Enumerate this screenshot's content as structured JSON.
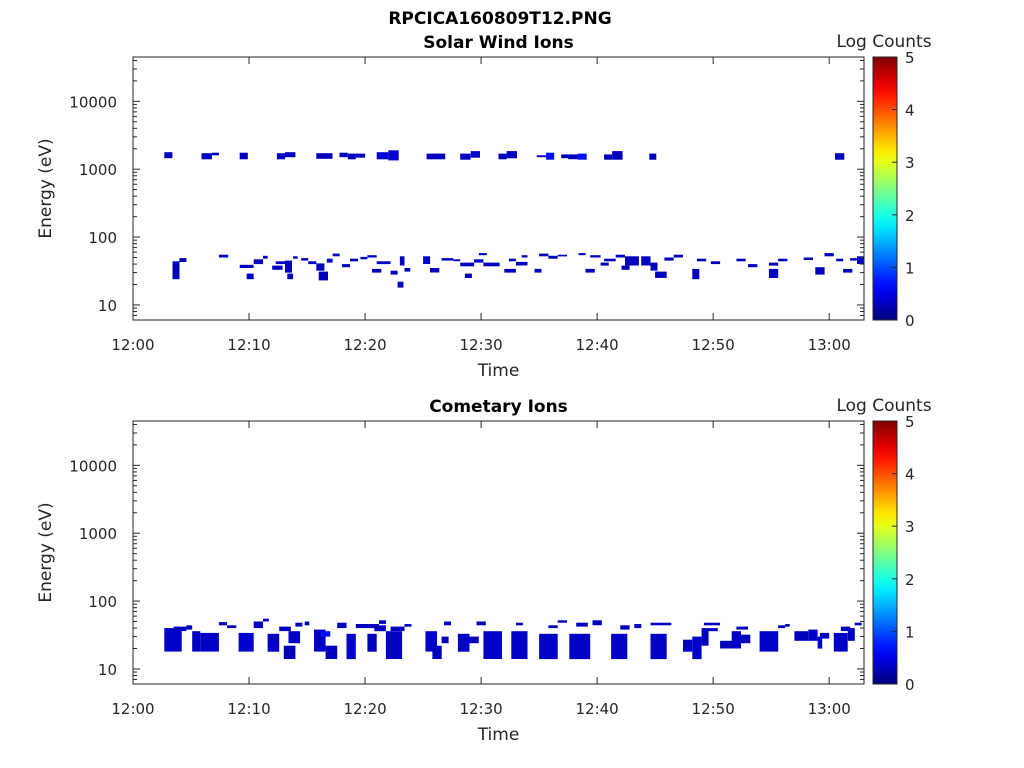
{
  "figure_title": "RPCICA160809T12.PNG",
  "chart_data": [
    {
      "type": "heatmap",
      "title": "Solar Wind Ions",
      "xlabel": "Time",
      "ylabel": "Energy (eV)",
      "x_ticks": [
        "12:00",
        "12:10",
        "12:20",
        "12:30",
        "12:40",
        "12:50",
        "13:00"
      ],
      "x_tick_minutes": [
        0,
        10,
        20,
        30,
        40,
        50,
        60
      ],
      "xlim_minutes": [
        0,
        63
      ],
      "y_scale": "log",
      "ylim": [
        6,
        45000
      ],
      "y_ticks": [
        10,
        100,
        1000,
        10000
      ],
      "y_tick_labels": [
        "10",
        "100",
        "1000",
        "10000"
      ],
      "colorbar": {
        "label": "Log Counts",
        "range": [
          0,
          5
        ],
        "ticks": [
          "0",
          "1",
          "2",
          "3",
          "4",
          "5"
        ]
      },
      "cells_format": [
        "t_start_min",
        "t_end_min",
        "e_low_eV",
        "e_high_eV",
        "log_counts"
      ],
      "cells": [
        [
          2.7,
          3.4,
          1450,
          1780,
          0.3
        ],
        [
          5.9,
          6.8,
          1400,
          1720,
          0.3
        ],
        [
          6.8,
          7.4,
          1600,
          1750,
          0.3
        ],
        [
          9.2,
          9.9,
          1400,
          1750,
          0.3
        ],
        [
          12.4,
          13.1,
          1400,
          1720,
          0.3
        ],
        [
          13.1,
          14.0,
          1500,
          1780,
          0.3
        ],
        [
          15.8,
          17.2,
          1420,
          1720,
          0.3
        ],
        [
          17.8,
          18.5,
          1500,
          1750,
          0.3
        ],
        [
          18.5,
          19.2,
          1400,
          1700,
          0.3
        ],
        [
          19.2,
          20.0,
          1480,
          1700,
          0.3
        ],
        [
          21.0,
          22.0,
          1400,
          1780,
          0.4
        ],
        [
          22.0,
          22.9,
          1350,
          1900,
          0.4
        ],
        [
          25.3,
          26.9,
          1400,
          1700,
          0.3
        ],
        [
          28.2,
          29.1,
          1380,
          1700,
          0.3
        ],
        [
          29.1,
          29.9,
          1480,
          1850,
          0.4
        ],
        [
          31.5,
          32.2,
          1400,
          1700,
          0.3
        ],
        [
          32.2,
          33.1,
          1450,
          1850,
          0.3
        ],
        [
          34.8,
          35.6,
          1500,
          1600,
          0.3
        ],
        [
          35.6,
          36.3,
          1380,
          1750,
          0.7
        ],
        [
          36.9,
          37.5,
          1450,
          1650,
          0.3
        ],
        [
          37.5,
          38.3,
          1400,
          1650,
          0.3
        ],
        [
          38.3,
          39.1,
          1380,
          1700,
          0.7
        ],
        [
          40.6,
          41.3,
          1380,
          1650,
          0.3
        ],
        [
          41.3,
          42.2,
          1380,
          1850,
          0.3
        ],
        [
          44.5,
          45.1,
          1380,
          1700,
          0.3
        ],
        [
          60.5,
          61.3,
          1380,
          1720,
          0.3
        ],
        [
          3.4,
          4.0,
          24,
          44,
          0.3
        ],
        [
          4.0,
          4.6,
          43,
          49,
          0.3
        ],
        [
          7.4,
          8.2,
          50,
          55,
          0.3
        ],
        [
          9.2,
          10.4,
          35,
          39,
          0.3
        ],
        [
          9.8,
          10.4,
          24,
          29,
          0.3
        ],
        [
          10.4,
          11.2,
          40,
          47,
          0.3
        ],
        [
          11.2,
          11.6,
          48,
          53,
          0.3
        ],
        [
          12.0,
          12.9,
          33,
          38,
          0.3
        ],
        [
          12.3,
          13.1,
          40,
          44,
          0.3
        ],
        [
          13.1,
          13.7,
          30,
          45,
          0.3
        ],
        [
          13.3,
          13.8,
          24,
          29,
          0.3
        ],
        [
          13.8,
          14.2,
          48,
          52,
          0.3
        ],
        [
          14.5,
          15.1,
          45,
          49,
          0.3
        ],
        [
          15.1,
          15.8,
          40,
          44,
          0.3
        ],
        [
          15.8,
          16.5,
          32,
          41,
          0.3
        ],
        [
          16.0,
          16.8,
          23,
          31,
          0.3
        ],
        [
          16.7,
          17.2,
          42,
          48,
          0.3
        ],
        [
          17.2,
          17.8,
          52,
          57,
          0.3
        ],
        [
          18.0,
          18.7,
          36,
          40,
          0.3
        ],
        [
          18.7,
          19.4,
          44,
          48,
          0.3
        ],
        [
          19.6,
          20.2,
          47,
          51,
          0.3
        ],
        [
          20.2,
          21.0,
          50,
          54,
          0.3
        ],
        [
          20.6,
          21.4,
          30,
          34,
          0.3
        ],
        [
          21.0,
          22.2,
          40,
          44,
          0.3
        ],
        [
          22.2,
          22.8,
          28,
          32,
          0.3
        ],
        [
          22.8,
          23.3,
          18,
          22,
          0.3
        ],
        [
          23.0,
          23.4,
          38,
          52,
          0.3
        ],
        [
          23.4,
          23.9,
          31,
          35,
          0.3
        ],
        [
          25.0,
          25.6,
          40,
          52,
          0.3
        ],
        [
          25.6,
          26.4,
          30,
          35,
          0.3
        ],
        [
          26.6,
          27.6,
          45,
          49,
          0.3
        ],
        [
          27.6,
          28.2,
          44,
          47,
          0.3
        ],
        [
          28.2,
          29.4,
          37,
          42,
          0.3
        ],
        [
          28.6,
          29.2,
          25,
          29,
          0.3
        ],
        [
          29.4,
          30.2,
          42,
          47,
          0.3
        ],
        [
          29.8,
          30.5,
          54,
          58,
          0.3
        ],
        [
          30.2,
          31.6,
          37,
          42,
          0.3
        ],
        [
          32.0,
          33.0,
          30,
          34,
          0.3
        ],
        [
          32.4,
          33.0,
          44,
          48,
          0.3
        ],
        [
          33.0,
          34.0,
          38,
          43,
          0.3
        ],
        [
          33.5,
          34.0,
          50,
          54,
          0.3
        ],
        [
          34.6,
          35.2,
          30,
          34,
          0.3
        ],
        [
          35.0,
          35.8,
          52,
          57,
          0.3
        ],
        [
          35.8,
          36.6,
          48,
          53,
          0.3
        ],
        [
          36.6,
          37.4,
          52,
          55,
          0.3
        ],
        [
          38.4,
          39.0,
          54,
          58,
          0.3
        ],
        [
          39.0,
          39.8,
          30,
          34,
          0.3
        ],
        [
          39.4,
          40.3,
          50,
          54,
          0.3
        ],
        [
          40.3,
          41.0,
          38,
          42,
          0.3
        ],
        [
          40.6,
          41.6,
          44,
          48,
          0.3
        ],
        [
          41.6,
          42.4,
          50,
          55,
          0.3
        ],
        [
          42.1,
          42.8,
          33,
          38,
          0.3
        ],
        [
          42.4,
          43.6,
          38,
          52,
          0.3
        ],
        [
          43.8,
          44.6,
          38,
          52,
          0.3
        ],
        [
          44.6,
          45.2,
          32,
          42,
          0.3
        ],
        [
          45.0,
          46.0,
          25,
          31,
          0.3
        ],
        [
          45.8,
          46.6,
          45,
          50,
          0.3
        ],
        [
          46.6,
          47.4,
          50,
          55,
          0.3
        ],
        [
          48.6,
          49.4,
          44,
          48,
          0.3
        ],
        [
          48.2,
          48.8,
          24,
          34,
          0.3
        ],
        [
          49.8,
          50.6,
          40,
          44,
          0.3
        ],
        [
          52.0,
          52.8,
          44,
          48,
          0.3
        ],
        [
          53.0,
          53.8,
          36,
          40,
          0.3
        ],
        [
          54.8,
          55.6,
          25,
          34,
          0.3
        ],
        [
          54.8,
          55.6,
          38,
          42,
          0.3
        ],
        [
          55.6,
          56.4,
          44,
          48,
          0.3
        ],
        [
          57.8,
          58.6,
          46,
          50,
          0.3
        ],
        [
          58.8,
          59.6,
          28,
          36,
          0.3
        ],
        [
          59.6,
          60.4,
          52,
          58,
          0.3
        ],
        [
          60.6,
          61.2,
          44,
          48,
          0.3
        ],
        [
          61.2,
          62.0,
          30,
          34,
          0.3
        ],
        [
          61.8,
          62.6,
          45,
          49,
          0.3
        ],
        [
          62.4,
          63.0,
          40,
          52,
          0.3
        ]
      ]
    },
    {
      "type": "heatmap",
      "title": "Cometary Ions",
      "xlabel": "Time",
      "ylabel": "Energy (eV)",
      "x_ticks": [
        "12:00",
        "12:10",
        "12:20",
        "12:30",
        "12:40",
        "12:50",
        "13:00"
      ],
      "x_tick_minutes": [
        0,
        10,
        20,
        30,
        40,
        50,
        60
      ],
      "xlim_minutes": [
        0,
        63
      ],
      "y_scale": "log",
      "ylim": [
        6,
        45000
      ],
      "y_ticks": [
        10,
        100,
        1000,
        10000
      ],
      "y_tick_labels": [
        "10",
        "100",
        "1000",
        "10000"
      ],
      "colorbar": {
        "label": "Log Counts",
        "range": [
          0,
          5
        ],
        "ticks": [
          "0",
          "1",
          "2",
          "3",
          "4",
          "5"
        ]
      },
      "cells_format": [
        "t_start_min",
        "t_end_min",
        "e_low_eV",
        "e_high_eV",
        "log_counts"
      ],
      "cells": [
        [
          2.7,
          4.2,
          18,
          40,
          0.35
        ],
        [
          3.5,
          4.6,
          36,
          42,
          0.35
        ],
        [
          4.6,
          5.1,
          38,
          44,
          0.3
        ],
        [
          5.1,
          5.8,
          18,
          36,
          0.3
        ],
        [
          5.8,
          7.4,
          18,
          34,
          0.35
        ],
        [
          7.4,
          8.1,
          44,
          49,
          0.3
        ],
        [
          8.1,
          8.9,
          40,
          44,
          0.3
        ],
        [
          9.1,
          10.4,
          18,
          34,
          0.4
        ],
        [
          10.4,
          11.2,
          40,
          50,
          0.3
        ],
        [
          11.2,
          11.7,
          50,
          55,
          0.3
        ],
        [
          11.6,
          12.6,
          18,
          33,
          0.35
        ],
        [
          12.6,
          13.6,
          36,
          42,
          0.3
        ],
        [
          13.0,
          14.0,
          14,
          22,
          0.3
        ],
        [
          13.4,
          14.4,
          24,
          36,
          0.35
        ],
        [
          14.0,
          14.6,
          42,
          48,
          0.3
        ],
        [
          14.8,
          15.2,
          44,
          50,
          0.3
        ],
        [
          15.6,
          16.6,
          18,
          38,
          0.35
        ],
        [
          16.2,
          17.0,
          30,
          36,
          0.7
        ],
        [
          16.6,
          17.6,
          14,
          22,
          0.3
        ],
        [
          17.6,
          18.4,
          40,
          48,
          0.3
        ],
        [
          18.4,
          19.2,
          14,
          33,
          0.35
        ],
        [
          19.2,
          21.2,
          40,
          46,
          0.3
        ],
        [
          20.2,
          21.0,
          18,
          33,
          0.3
        ],
        [
          20.8,
          21.8,
          36,
          44,
          0.3
        ],
        [
          21.2,
          21.8,
          46,
          52,
          0.3
        ],
        [
          21.8,
          23.2,
          14,
          36,
          0.35
        ],
        [
          22.2,
          23.4,
          36,
          42,
          0.3
        ],
        [
          23.4,
          24.0,
          42,
          46,
          0.3
        ],
        [
          25.2,
          26.2,
          18,
          36,
          0.35
        ],
        [
          25.8,
          26.6,
          14,
          22,
          0.3
        ],
        [
          26.6,
          27.2,
          24,
          30,
          0.3
        ],
        [
          26.8,
          27.4,
          44,
          50,
          0.3
        ],
        [
          28.0,
          29.0,
          18,
          33,
          0.35
        ],
        [
          29.0,
          29.8,
          24,
          30,
          0.3
        ],
        [
          29.6,
          30.4,
          44,
          50,
          0.3
        ],
        [
          30.2,
          31.8,
          14,
          36,
          0.35
        ],
        [
          32.6,
          34.0,
          14,
          36,
          0.35
        ],
        [
          33.0,
          33.6,
          44,
          48,
          0.3
        ],
        [
          35.0,
          36.6,
          14,
          33,
          0.35
        ],
        [
          35.8,
          36.6,
          40,
          44,
          0.3
        ],
        [
          36.6,
          37.4,
          48,
          52,
          0.3
        ],
        [
          37.6,
          39.4,
          14,
          33,
          0.35
        ],
        [
          38.2,
          39.2,
          42,
          48,
          0.3
        ],
        [
          39.6,
          40.4,
          44,
          52,
          0.3
        ],
        [
          41.2,
          42.6,
          14,
          33,
          0.35
        ],
        [
          42.0,
          42.8,
          38,
          44,
          0.3
        ],
        [
          43.2,
          43.8,
          40,
          46,
          0.3
        ],
        [
          44.6,
          46.0,
          14,
          33,
          0.35
        ],
        [
          44.6,
          46.4,
          44,
          48,
          0.3
        ],
        [
          47.4,
          48.2,
          18,
          27,
          0.35
        ],
        [
          48.2,
          49.0,
          14,
          30,
          0.35
        ],
        [
          49.0,
          49.6,
          22,
          40,
          0.3
        ],
        [
          49.6,
          50.4,
          36,
          40,
          0.3
        ],
        [
          49.2,
          50.6,
          44,
          48,
          0.3
        ],
        [
          50.6,
          52.0,
          20,
          26,
          0.3
        ],
        [
          51.6,
          52.4,
          20,
          36,
          0.35
        ],
        [
          52.4,
          53.2,
          24,
          32,
          0.3
        ],
        [
          52.0,
          53.0,
          38,
          42,
          0.3
        ],
        [
          54.0,
          55.6,
          18,
          36,
          0.35
        ],
        [
          55.6,
          56.2,
          40,
          44,
          0.3
        ],
        [
          56.2,
          56.6,
          42,
          46,
          0.3
        ],
        [
          57.0,
          58.2,
          26,
          36,
          0.3
        ],
        [
          58.2,
          59.0,
          26,
          38,
          0.35
        ],
        [
          59.0,
          59.4,
          20,
          30,
          0.3
        ],
        [
          59.2,
          60.0,
          28,
          34,
          0.3
        ],
        [
          60.4,
          61.6,
          18,
          34,
          0.35
        ],
        [
          61.0,
          61.8,
          36,
          42,
          0.3
        ],
        [
          61.6,
          62.2,
          26,
          40,
          0.3
        ],
        [
          62.2,
          62.8,
          44,
          48,
          0.3
        ]
      ]
    }
  ]
}
